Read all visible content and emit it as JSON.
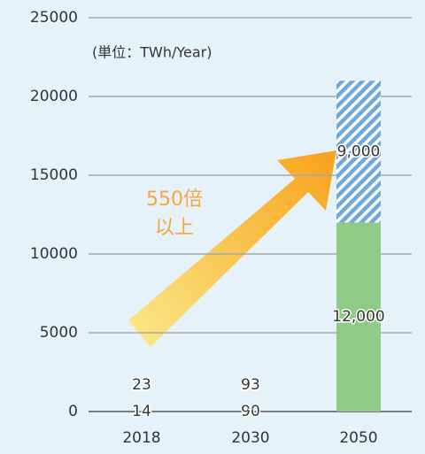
{
  "chart_data": {
    "type": "stacked_bar",
    "unit_label": "(単位：TWh/Year)",
    "annotation": [
      "550倍",
      "以上"
    ],
    "categories": [
      "2018",
      "2030",
      "2050"
    ],
    "series": [
      {
        "color": "#8dcb87",
        "values": [
          14,
          90,
          12000
        ],
        "value_labels": [
          "14",
          "90",
          "12,000"
        ]
      },
      {
        "color": "#6fa8dc",
        "pattern": "hatch",
        "values": [
          23,
          93,
          9000
        ],
        "value_labels": [
          "23",
          "93",
          "9,000"
        ]
      }
    ],
    "ylim": [
      0,
      25000
    ],
    "yticks": [
      0,
      5000,
      10000,
      15000,
      20000,
      25000
    ],
    "grid": true
  }
}
